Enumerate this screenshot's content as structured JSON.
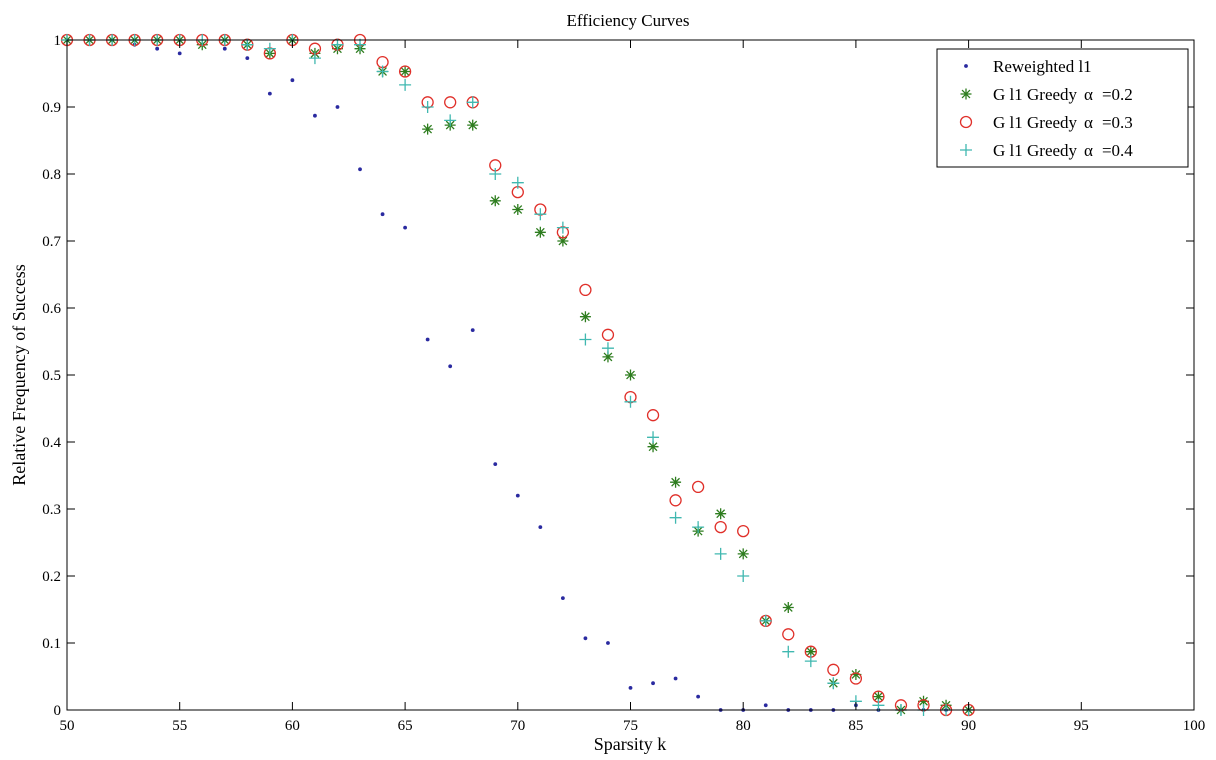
{
  "chart_data": {
    "type": "scatter",
    "title": "Efficiency Curves",
    "xlabel": "Sparsity k",
    "ylabel": "Relative Frequency of Success",
    "xlim": [
      50,
      100
    ],
    "ylim": [
      0,
      1
    ],
    "xticks": [
      "50",
      "55",
      "60",
      "65",
      "70",
      "75",
      "80",
      "85",
      "90",
      "95",
      "100"
    ],
    "yticks": [
      "0",
      "0.1",
      "0.2",
      "0.3",
      "0.4",
      "0.5",
      "0.6",
      "0.7",
      "0.8",
      "0.9",
      "1"
    ],
    "grid": false,
    "legend_position": "top-right",
    "x": [
      50,
      51,
      52,
      53,
      54,
      55,
      56,
      57,
      58,
      59,
      60,
      61,
      62,
      63,
      64,
      65,
      66,
      67,
      68,
      69,
      70,
      71,
      72,
      73,
      74,
      75,
      76,
      77,
      78,
      79,
      80,
      81,
      82,
      83,
      84,
      85,
      86,
      87,
      88,
      89,
      90
    ],
    "series": [
      {
        "name": "Reweighted l1",
        "legend_main": "Reweighted l1",
        "legend_alpha": "",
        "legend_value": "",
        "marker": "dot",
        "color": "#2a2aa0",
        "values": [
          1,
          1,
          1,
          0.993,
          0.987,
          0.98,
          0.993,
          0.987,
          0.973,
          0.92,
          0.94,
          0.887,
          0.9,
          0.807,
          0.74,
          0.72,
          0.553,
          0.513,
          0.567,
          0.367,
          0.32,
          0.273,
          0.167,
          0.107,
          0.1,
          0.033,
          0.04,
          0.047,
          0.02,
          0,
          0,
          0.007,
          0,
          0,
          0,
          0.007,
          0,
          0,
          0,
          0,
          0
        ]
      },
      {
        "name": "G l1 Greedy α =0.2",
        "legend_main": "G l1 Greedy",
        "legend_alpha": "α",
        "legend_value": "=0.2",
        "marker": "asterisk",
        "color": "#2e7d1f",
        "values": [
          1,
          1,
          1,
          1,
          1,
          1,
          0.993,
          1,
          0.993,
          0.98,
          1,
          0.98,
          0.987,
          0.987,
          0.953,
          0.953,
          0.867,
          0.873,
          0.873,
          0.76,
          0.747,
          0.713,
          0.7,
          0.587,
          0.527,
          0.5,
          0.393,
          0.34,
          0.267,
          0.293,
          0.233,
          0.133,
          0.153,
          0.087,
          0.04,
          0.053,
          0.02,
          0,
          0.013,
          0.007,
          0
        ]
      },
      {
        "name": "G l1 Greedy α =0.3",
        "legend_main": "G l1 Greedy",
        "legend_alpha": "α",
        "legend_value": "=0.3",
        "marker": "circle",
        "color": "#e0302a",
        "values": [
          1,
          1,
          1,
          1,
          1,
          1,
          1,
          1,
          0.993,
          0.98,
          1,
          0.987,
          0.993,
          1,
          0.967,
          0.953,
          0.907,
          0.907,
          0.907,
          0.813,
          0.773,
          0.747,
          0.713,
          0.627,
          0.56,
          0.467,
          0.44,
          0.313,
          0.333,
          0.273,
          0.267,
          0.133,
          0.113,
          0.087,
          0.06,
          0.047,
          0.02,
          0.007,
          0.007,
          0,
          0
        ]
      },
      {
        "name": "G l1 Greedy α =0.4",
        "legend_main": "G l1 Greedy",
        "legend_alpha": "α",
        "legend_value": "=0.4",
        "marker": "plus",
        "color": "#40b8b0",
        "values": [
          1,
          1,
          1,
          1,
          1,
          1,
          1,
          1,
          0.993,
          0.987,
          1,
          0.973,
          0.993,
          0.993,
          0.953,
          0.933,
          0.9,
          0.88,
          0.907,
          0.8,
          0.787,
          0.74,
          0.72,
          0.553,
          0.54,
          0.46,
          0.407,
          0.287,
          0.273,
          0.233,
          0.2,
          0.133,
          0.087,
          0.073,
          0.04,
          0.013,
          0.007,
          0,
          0,
          0,
          0
        ]
      }
    ]
  }
}
